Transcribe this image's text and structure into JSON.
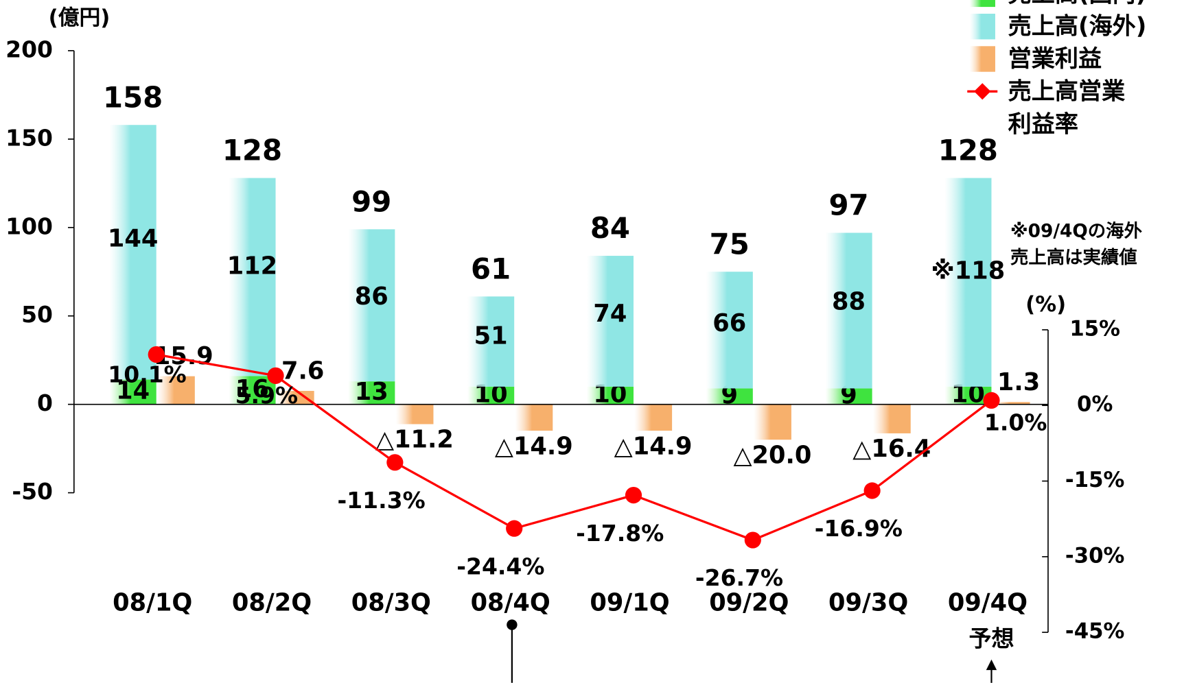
{
  "chart_data": {
    "type": "bar",
    "unit_label": "(億円)",
    "y2_unit_label": "(%)",
    "categories": [
      "08/1Q",
      "08/2Q",
      "08/3Q",
      "08/4Q",
      "09/1Q",
      "09/2Q",
      "09/3Q",
      "09/4Q"
    ],
    "forecast_label": "予想",
    "series": [
      {
        "name": "売上高(国内)",
        "color": "#3fe33f",
        "stack": "sales",
        "values": [
          14,
          16,
          13,
          10,
          10,
          9,
          9,
          10
        ]
      },
      {
        "name": "売上高(海外)",
        "color": "#8fe6e4",
        "stack": "sales",
        "values": [
          144,
          112,
          86,
          51,
          74,
          66,
          88,
          118
        ],
        "value_labels": [
          "144",
          "112",
          "86",
          "51",
          "74",
          "66",
          "88",
          "※118"
        ]
      },
      {
        "name": "営業利益",
        "color": "#f7b06c",
        "stack": "profit",
        "values": [
          15.9,
          7.6,
          -11.2,
          -14.9,
          -14.9,
          -20.0,
          -16.4,
          1.3
        ],
        "value_labels": [
          "15.9",
          "7.6",
          "△11.2",
          "△14.9",
          "△14.9",
          "△20.0",
          "△16.4",
          "1.3"
        ]
      },
      {
        "name": "売上高営業利益率",
        "color": "#ff0000",
        "type": "line",
        "axis": "y2",
        "values": [
          10.1,
          5.9,
          -11.3,
          -24.4,
          -17.8,
          -26.7,
          -16.9,
          1.0
        ],
        "value_labels": [
          "10.1%",
          "5.9%",
          "-11.3%",
          "-24.4%",
          "-17.8%",
          "-26.7%",
          "-16.9%",
          "1.0%"
        ]
      }
    ],
    "totals": [
      158,
      128,
      99,
      61,
      84,
      75,
      97,
      128
    ],
    "ylim": [
      -50,
      200
    ],
    "yticks": [
      -50,
      0,
      50,
      100,
      150,
      200
    ],
    "y2lim": [
      -45,
      15
    ],
    "y2ticks": [
      {
        "value": 15,
        "label": "15%"
      },
      {
        "value": 0,
        "label": "0%"
      },
      {
        "value": -15,
        "label": "-15%"
      },
      {
        "value": -30,
        "label": "-30%"
      },
      {
        "value": -45,
        "label": "-45%"
      }
    ],
    "annotations": [
      "※09/4Qの海外",
      "売上高は実績値"
    ]
  }
}
